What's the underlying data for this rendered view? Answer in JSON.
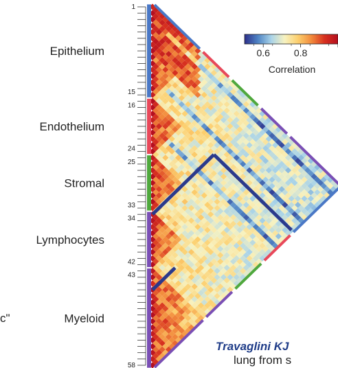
{
  "chart_data": {
    "type": "heatmap",
    "shape": "lower-triangle correlation matrix rotated 45 degrees",
    "n": 58,
    "groups": [
      {
        "name": "Epithelium",
        "start": 1,
        "end": 15,
        "color": "#4a78c6"
      },
      {
        "name": "Endothelium",
        "start": 16,
        "end": 24,
        "color": "#e8485a"
      },
      {
        "name": "Stromal",
        "start": 25,
        "end": 33,
        "color": "#4fa83d"
      },
      {
        "name": "Lymphocytes",
        "start": 34,
        "end": 42,
        "color": "#7a4fb5"
      },
      {
        "name": "Myeloid",
        "start": 43,
        "end": 58,
        "color": "#7a4fb5"
      }
    ],
    "tick_labels": [
      "1",
      "15",
      "16",
      "24",
      "25",
      "33",
      "34",
      "42",
      "43",
      "58"
    ],
    "tick_values": [
      1,
      15,
      16,
      24,
      25,
      33,
      34,
      42,
      43,
      58
    ],
    "colorbar": {
      "title": "Correlation",
      "ticks": [
        "0.6",
        "0.8"
      ],
      "tick_values": [
        0.6,
        0.8
      ],
      "range": [
        0.5,
        1.0
      ],
      "colors": [
        "#2c2f8a",
        "#4f84c4",
        "#a9d3e8",
        "#f7f2c0",
        "#fccf6e",
        "#f28b3c",
        "#d7301f",
        "#b50f1f"
      ]
    },
    "highlights": [
      {
        "from": [
          34,
          15
        ],
        "to": [
          58,
          15
        ],
        "color": "#2b3a8c"
      },
      {
        "from": [
          46,
          42
        ],
        "to": [
          58,
          42
        ],
        "color": "#2b3a8c"
      }
    ]
  },
  "citation": {
    "authors": "Travaglini KJ",
    "text": "lung from s"
  },
  "edge_text": "c\""
}
